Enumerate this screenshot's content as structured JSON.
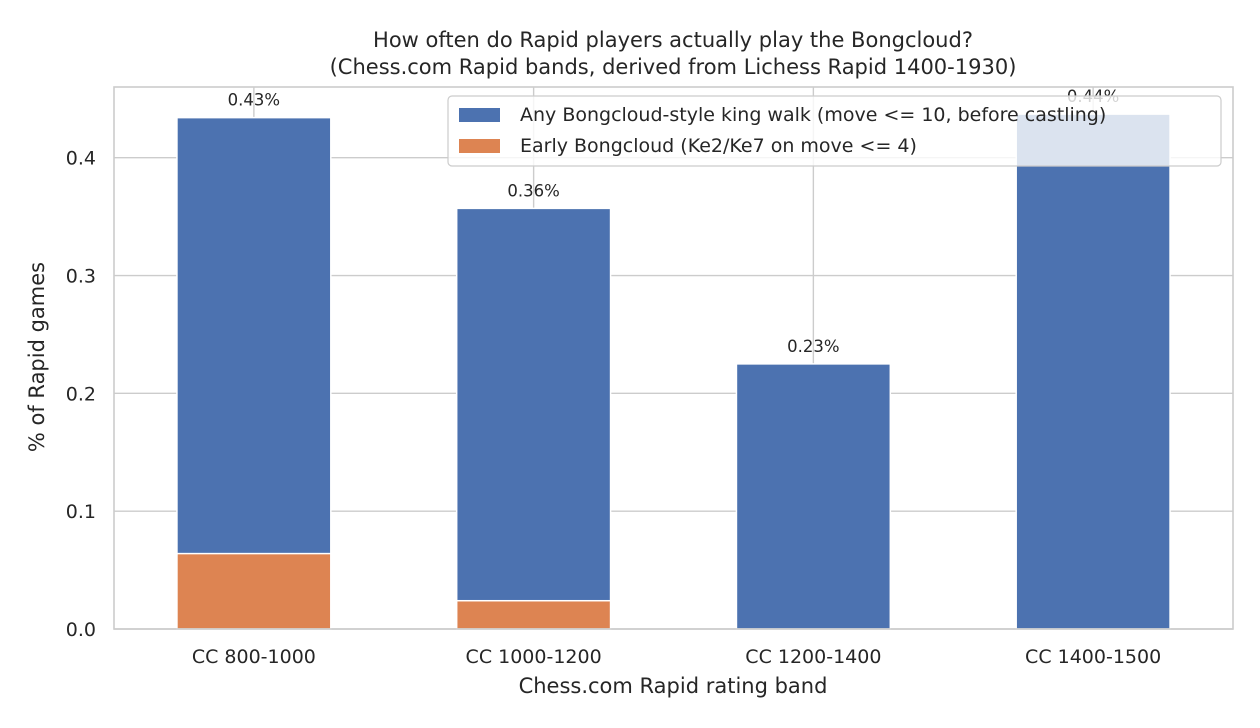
{
  "chart_data": {
    "type": "bar",
    "stacked": "overlay",
    "title": "How often do Rapid players actually play the Bongcloud?",
    "subtitle": "(Chess.com Rapid bands, derived from Lichess Rapid 1400-1930)",
    "xlabel": "Chess.com Rapid rating band",
    "ylabel": "% of Rapid games",
    "categories": [
      "CC 800-1000",
      "CC 1000-1200",
      "CC 1200-1400",
      "CC 1400-1500"
    ],
    "series": [
      {
        "name": "Any Bongcloud-style king walk (move <= 10, before castling)",
        "color": "#4c72b0",
        "values": [
          0.434,
          0.357,
          0.225,
          0.437
        ]
      },
      {
        "name": "Early Bongcloud (Ke2/Ke7 on move <= 4)",
        "color": "#dd8452",
        "values": [
          0.064,
          0.024,
          0.0,
          0.0
        ]
      }
    ],
    "data_labels": [
      "0.43%",
      "0.36%",
      "0.23%",
      "0.44%"
    ],
    "yticks": [
      "0.0",
      "0.1",
      "0.2",
      "0.3",
      "0.4"
    ],
    "ylim": [
      0,
      0.46
    ],
    "grid": true,
    "legend_position": "top-right"
  }
}
